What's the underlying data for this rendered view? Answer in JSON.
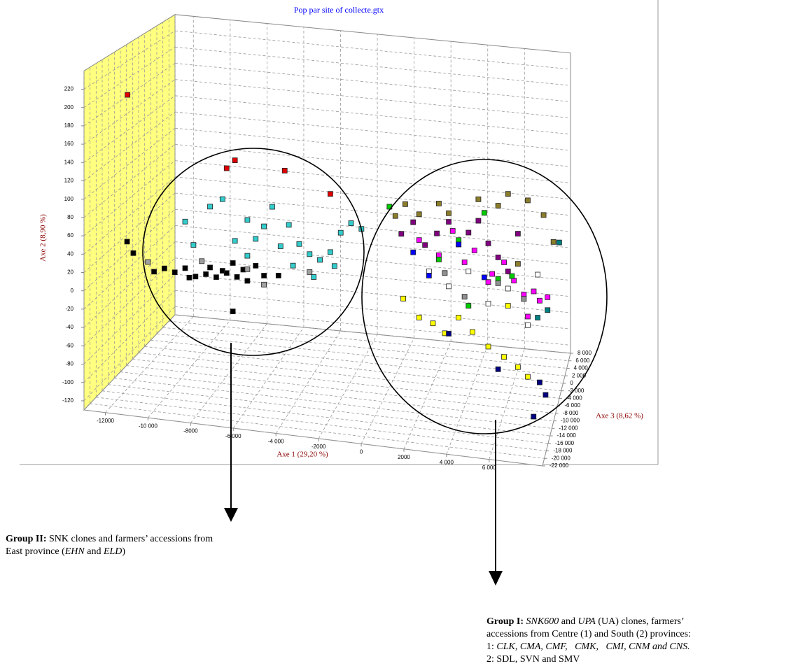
{
  "chart_data": {
    "type": "scatter3d",
    "title": "Pop par site of collecte.gtx",
    "xlabel": "Axe 1 (29,20 %)",
    "ylabel": "Axe 2 (8,90 %)",
    "zlabel": "Axe 3 (8,62 %)",
    "xlim": [
      -13000,
      8500
    ],
    "ylim": [
      -130,
      240
    ],
    "zlim": [
      -22000,
      8000
    ],
    "grid": true,
    "xticks": [
      -12000,
      {
        "value": -10000,
        "label": "-10 000"
      },
      -8000,
      {
        "value": -6000,
        "label": "-6 000"
      },
      {
        "value": -4000,
        "label": "-4 000"
      },
      -2000,
      0,
      2000,
      {
        "value": 4000,
        "label": "4 000"
      },
      {
        "value": 6000,
        "label": "6 000"
      }
    ],
    "yticks": [
      -120,
      -100,
      -80,
      -60,
      -40,
      -20,
      0,
      20,
      40,
      60,
      80,
      100,
      120,
      140,
      160,
      180,
      200,
      220
    ],
    "zticks": [
      {
        "value": 8000,
        "label": "8 000"
      },
      {
        "value": 6000,
        "label": "6 000"
      },
      {
        "value": 4000,
        "label": "4 000"
      },
      {
        "value": 2000,
        "label": "2 000"
      },
      0,
      {
        "value": -2000,
        "label": "-2 000"
      },
      {
        "value": -4000,
        "label": "-4 000"
      },
      {
        "value": -6000,
        "label": "-6 000"
      },
      {
        "value": -8000,
        "label": "-8 000"
      },
      {
        "value": -10000,
        "label": "-10 000"
      },
      {
        "value": -12000,
        "label": "-12 000"
      },
      {
        "value": -14000,
        "label": "-14 000"
      },
      {
        "value": -16000,
        "label": "-16 000"
      },
      {
        "value": -18000,
        "label": "-18 000"
      },
      {
        "value": -20000,
        "label": "-20 000"
      },
      {
        "value": -22000,
        "label": "-22 000"
      }
    ],
    "series": [
      {
        "color": "#000000",
        "x": [
          -11800,
          -11500,
          -10500,
          -10000,
          -9500,
          -9000,
          -8800,
          -8500,
          -8000,
          -7800,
          -7500,
          -7200,
          -7000,
          -6700,
          -6500,
          -6200,
          -6000,
          -5600,
          -5200,
          -4500,
          -6700
        ],
        "y": [
          40,
          28,
          10,
          15,
          12,
          18,
          8,
          10,
          14,
          22,
          12,
          20,
          18,
          30,
          15,
          24,
          12,
          30,
          20,
          22,
          -24
        ],
        "z": [
          -16000,
          -16000,
          -16000,
          -16000,
          -16000,
          -16000,
          -16000,
          -16000,
          -16000,
          -16000,
          -16000,
          -16000,
          -16000,
          -16000,
          -16000,
          -16000,
          -16000,
          -16000,
          -16000,
          -16000,
          -16000
        ]
      },
      {
        "color": "#33cccc",
        "x": [
          -9000,
          -8600,
          -7800,
          -7200,
          -6600,
          -6000,
          -5600,
          -5200,
          -4800,
          -4400,
          -4000,
          -3500,
          -3000,
          -2500,
          -2000,
          -1500,
          -1000,
          -500,
          -1800,
          -6000,
          -3800,
          -2800
        ],
        "y": [
          70,
          45,
          90,
          100,
          55,
          80,
          60,
          75,
          98,
          55,
          80,
          60,
          50,
          45,
          55,
          78,
          90,
          85,
          40,
          40,
          35,
          25
        ],
        "z": [
          -16000,
          -16000,
          -16000,
          -16000,
          -16000,
          -16000,
          -16000,
          -16000,
          -16000,
          -16000,
          -16000,
          -16000,
          -16000,
          -16000,
          -16000,
          -16000,
          -16000,
          -16000,
          -16000,
          -16000,
          -16000,
          -16000
        ]
      },
      {
        "color": "#a0a0a0",
        "x": [
          -10800,
          -8200,
          -6000,
          -5200,
          -3000
        ],
        "y": [
          20,
          28,
          25,
          10,
          30
        ],
        "z": [
          -16000,
          -16000,
          -16000,
          -16000,
          -16000
        ]
      },
      {
        "color": "#e00000",
        "x": [
          -11780,
          -7000,
          -6600,
          -4200,
          -2000
        ],
        "y": [
          204,
          135,
          145,
          140,
          120
        ],
        "z": [
          -16000,
          -16000,
          -16000,
          -16000,
          -16000
        ]
      },
      {
        "color": "#8b7d2b",
        "x": [
          300,
          800,
          1500,
          2500,
          3000,
          4500,
          5500,
          6000,
          7000,
          7800,
          8300,
          6500
        ],
        "y": [
          70,
          85,
          75,
          90,
          80,
          100,
          95,
          110,
          105,
          90,
          60,
          30
        ],
        "z": [
          -6000,
          -6000,
          -6000,
          -6000,
          -6000,
          -6000,
          -6000,
          -6000,
          -6000,
          -6000,
          -6000,
          -6000
        ]
      },
      {
        "color": "#800080",
        "x": [
          600,
          1200,
          1800,
          2400,
          3000,
          3500,
          4000,
          4500,
          5000,
          5500,
          6000,
          6500
        ],
        "y": [
          50,
          65,
          40,
          55,
          70,
          45,
          60,
          75,
          50,
          35,
          20,
          65
        ],
        "z": [
          -6000,
          -6000,
          -6000,
          -6000,
          -6000,
          -6000,
          -6000,
          -6000,
          -6000,
          -6000,
          -6000,
          -6000
        ]
      },
      {
        "color": "#ff00ff",
        "x": [
          1500,
          2500,
          3200,
          3800,
          4300,
          5200,
          5800,
          6300,
          6800,
          7300,
          7600,
          8000,
          7000,
          5000
        ],
        "y": [
          45,
          30,
          60,
          25,
          40,
          15,
          30,
          10,
          -5,
          0,
          -10,
          -5,
          -30,
          5
        ],
        "z": [
          -6000,
          -6000,
          -6000,
          -6000,
          -6000,
          -6000,
          -6000,
          -6000,
          -6000,
          -6000,
          -6000,
          -6000,
          -6000,
          -6000
        ]
      },
      {
        "color": "#00cc00",
        "x": [
          0,
          2500,
          3500,
          4800,
          5500,
          6200,
          4000
        ],
        "y": [
          80,
          25,
          50,
          85,
          10,
          15,
          -25
        ],
        "z": [
          -6000,
          -6000,
          -6000,
          -6000,
          -6000,
          -6000,
          -6000
        ]
      },
      {
        "color": "#ffff00",
        "x": [
          700,
          1500,
          2200,
          2800,
          3500,
          4200,
          5000,
          5800,
          6500,
          7000,
          6000
        ],
        "y": [
          -25,
          -45,
          -50,
          -60,
          -40,
          -55,
          -70,
          -80,
          -90,
          -100,
          -20
        ],
        "z": [
          -6000,
          -6000,
          -6000,
          -6000,
          -6000,
          -6000,
          -6000,
          -6000,
          -6000,
          -6000,
          -6000
        ]
      },
      {
        "color": "#ffffff",
        "x": [
          2000,
          3000,
          4000,
          5000,
          6000,
          7000,
          7500
        ],
        "y": [
          10,
          -5,
          15,
          -20,
          0,
          -40,
          20
        ],
        "z": [
          -6000,
          -6000,
          -6000,
          -6000,
          -6000,
          -6000,
          -6000
        ]
      },
      {
        "color": "#909090",
        "x": [
          2800,
          3800,
          5500,
          6800
        ],
        "y": [
          10,
          -15,
          5,
          -10
        ],
        "z": [
          -6000,
          -6000,
          -6000,
          -6000
        ]
      },
      {
        "color": "#000080",
        "x": [
          3000,
          5500,
          7600,
          8000,
          7800
        ],
        "y": [
          -60,
          -95,
          -105,
          -110,
          -102
        ],
        "z": [
          -6000,
          -6000,
          -6000,
          -8000,
          -16000
        ]
      },
      {
        "color": "#0000ff",
        "x": [
          1200,
          2000,
          3500,
          4800
        ],
        "y": [
          30,
          5,
          45,
          10
        ],
        "z": [
          -6000,
          -6000,
          -6000,
          -6000
        ]
      },
      {
        "color": "#008080",
        "x": [
          8400,
          8000,
          7500
        ],
        "y": [
          45,
          -20,
          -30
        ],
        "z": [
          -2000,
          -6000,
          -6000
        ]
      }
    ]
  },
  "annotations": [
    {
      "lines": [
        [
          {
            "text": "Group II:",
            "style": "bold"
          },
          {
            "text": " SNK clones and farmers’ accessions from"
          }
        ],
        [
          {
            "text": "East province ("
          },
          {
            "text": "EHN",
            "style": "italic"
          },
          {
            "text": " and "
          },
          {
            "text": "ELD",
            "style": "italic"
          },
          {
            "text": ")"
          }
        ]
      ]
    },
    {
      "lines": [
        [
          {
            "text": "Group I:",
            "style": "bold"
          },
          {
            "text": " "
          },
          {
            "text": "SNK600",
            "style": "italic"
          },
          {
            "text": " and "
          },
          {
            "text": "UPA",
            "style": "italic"
          },
          {
            "text": " (UA) clones, farmers’"
          }
        ],
        [
          {
            "text": "accessions from Centre (1) and South (2) provinces:"
          }
        ],
        [
          {
            "text": "1: "
          },
          {
            "text": "CLK, CMA, CMF,   CMK,   CMI, CNM and CNS.",
            "style": "italic"
          }
        ],
        [
          {
            "text": "2: SDL, SVN and SMV"
          }
        ]
      ]
    }
  ]
}
